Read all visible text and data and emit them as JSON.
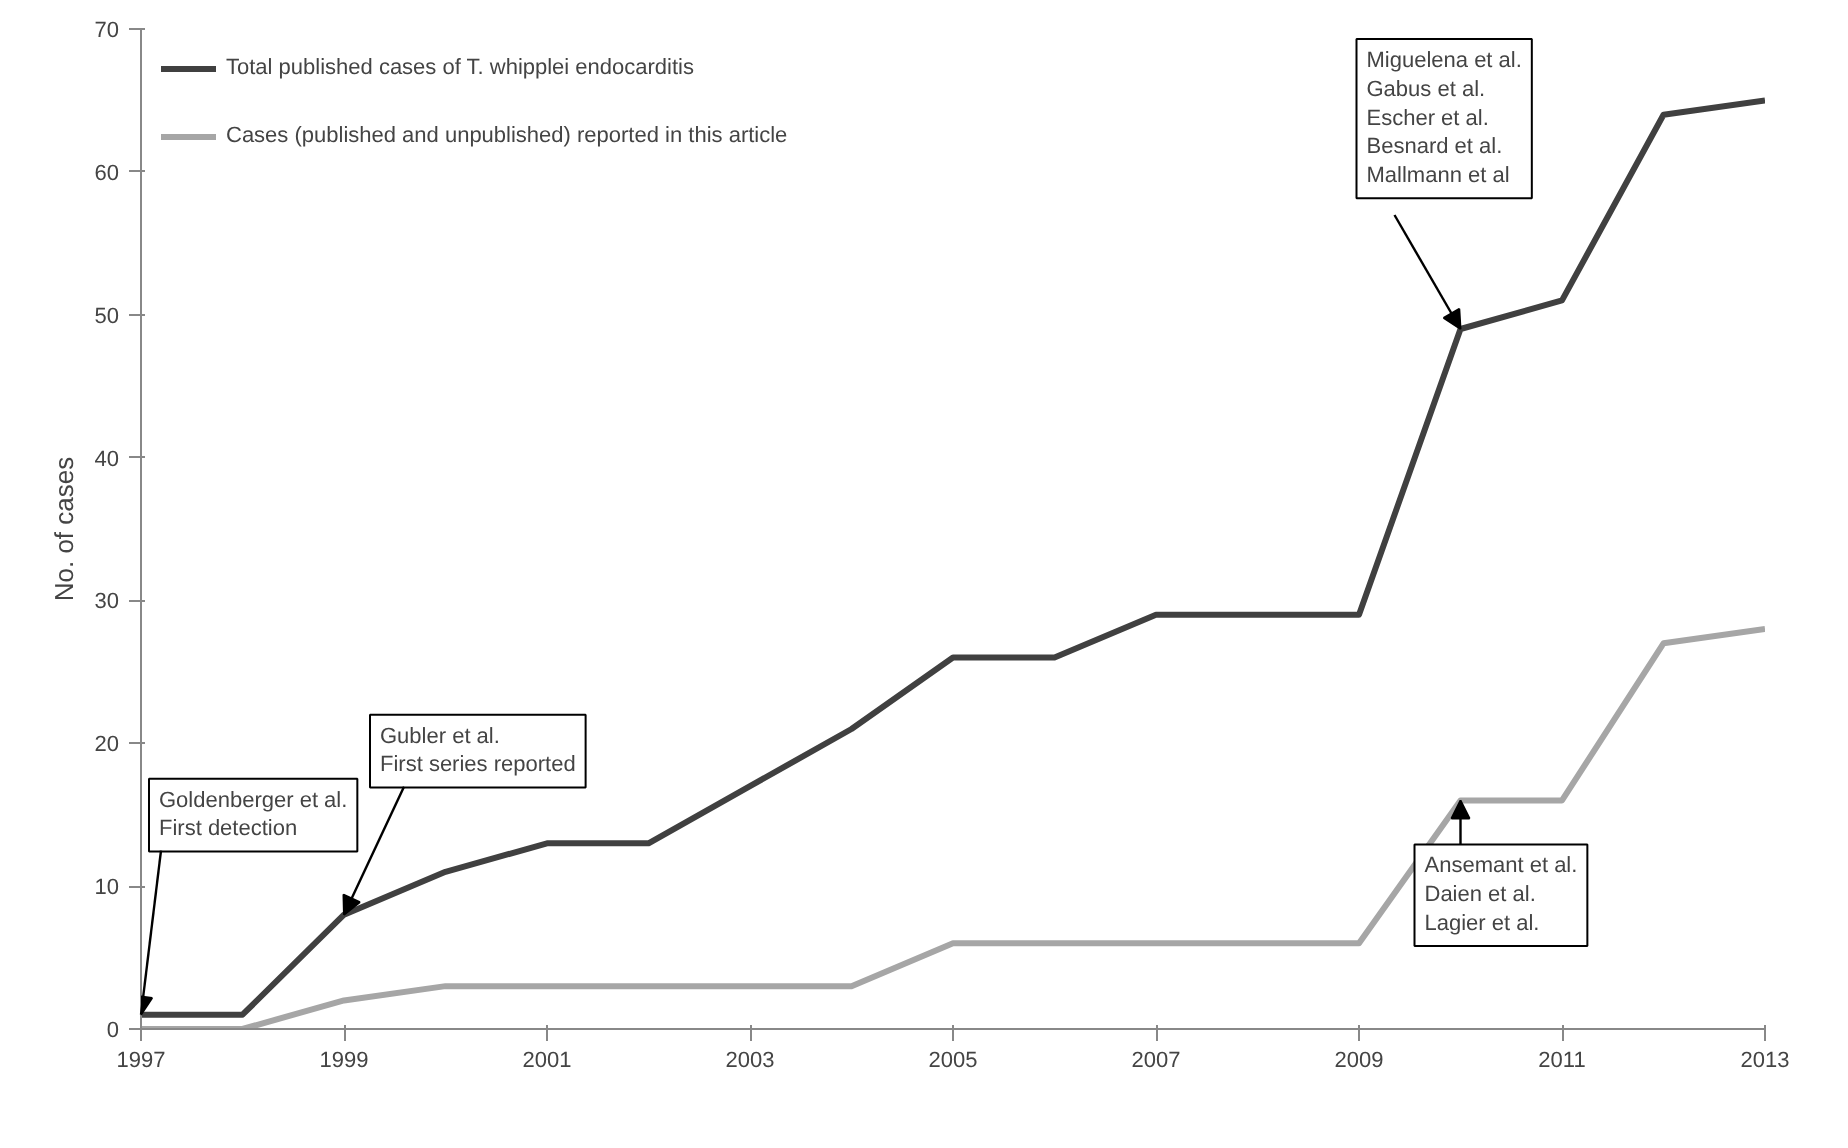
{
  "chart_data": {
    "type": "line",
    "ylabel": "No. of cases",
    "x": [
      1997,
      1998,
      1999,
      2000,
      2001,
      2002,
      2003,
      2004,
      2005,
      2006,
      2007,
      2008,
      2009,
      2010,
      2011,
      2012,
      2013
    ],
    "series": [
      {
        "name": "Total published cases of T. whipplei endocarditis",
        "color": "#404040",
        "values": [
          1,
          1,
          8,
          11,
          13,
          13,
          17,
          21,
          26,
          26,
          29,
          29,
          29,
          49,
          51,
          64,
          65
        ]
      },
      {
        "name": "Cases (published and unpublished) reported in this article",
        "color": "#a6a6a6",
        "values": [
          0,
          0,
          2,
          3,
          3,
          3,
          3,
          3,
          6,
          6,
          6,
          6,
          6,
          16,
          16,
          27,
          28
        ]
      }
    ],
    "xlim": [
      1997,
      2013
    ],
    "xticks": [
      1997,
      1999,
      2001,
      2003,
      2005,
      2007,
      2009,
      2011,
      2013
    ],
    "ylim": [
      0,
      70
    ],
    "yticks": [
      0,
      10,
      20,
      30,
      40,
      50,
      60,
      70
    ],
    "grid": false,
    "legend": "top left",
    "marker": "none",
    "line_style": "solid",
    "annotations": [
      {
        "text": "Goldenberger et al.\nFirst detection",
        "x": 1997,
        "y": 1
      },
      {
        "text": "Gubler et al.\nFirst series reported",
        "x": 1999,
        "y": 8
      },
      {
        "text": "Miguelena et al.\nGabus et al.\nEscher et al.\nBesnard et al.\nMallmann et al",
        "x": 2010,
        "y": 49
      },
      {
        "text": "Ansemant et al.\nDaien et al.\nLagier et al.",
        "x": 2010,
        "y": 16
      }
    ]
  }
}
